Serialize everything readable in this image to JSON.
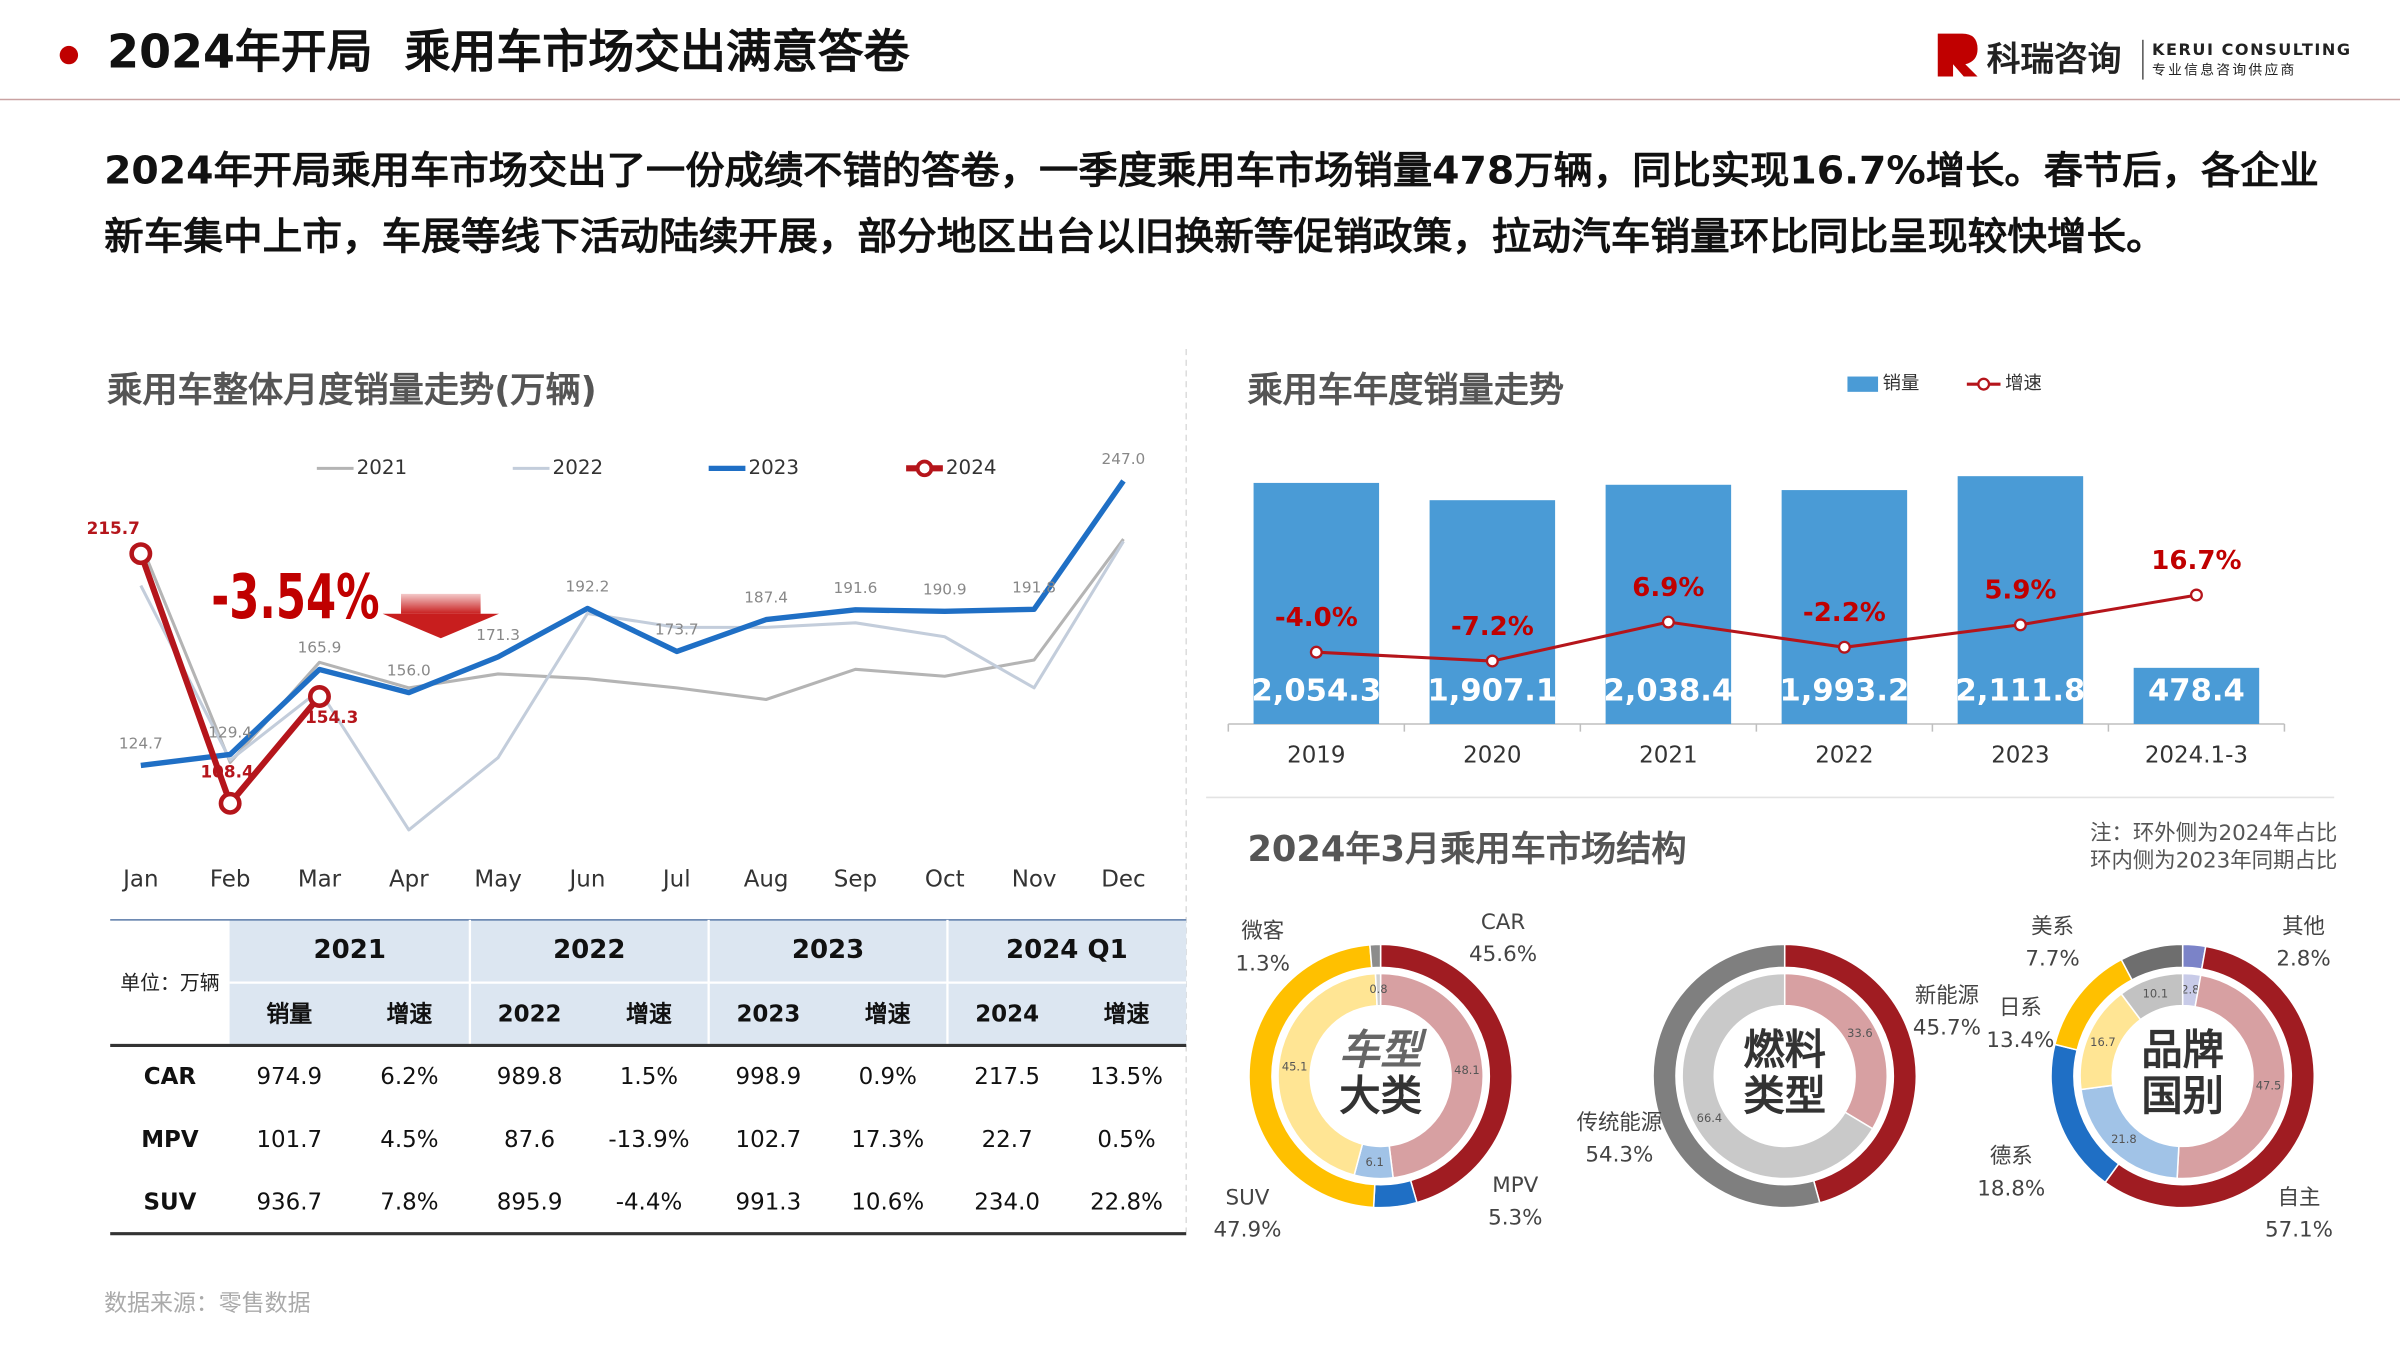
{
  "header": {
    "title": "2024年开局  乘用车市场交出满意答卷",
    "logo": {
      "name": "科瑞咨询",
      "english": "KERUI CONSULTING",
      "slogan": "专业信息咨询供应商"
    }
  },
  "intro": [
    "2024年开局乘用车市场交出了一份成绩不错的答卷，一季度乘用车市场销量478万辆，同比实现16.7%增长。春节后，各企业",
    "新车集中上市，车展等线下活动陆续开展，部分地区出台以旧换新等促销政策，拉动汽车销量环比同比呈现较快增长。"
  ],
  "chart_data": [
    {
      "type": "line",
      "title": "乘用车整体月度销量走势(万辆)",
      "annotation": "-3.54%",
      "categories": [
        "Jan",
        "Feb",
        "Mar",
        "Apr",
        "May",
        "Jun",
        "Jul",
        "Aug",
        "Sep",
        "Oct",
        "Nov",
        "Dec"
      ],
      "ylim": [
        90,
        260
      ],
      "series": [
        {
          "name": "2021",
          "color": "#b4b4b4",
          "values": [
            220,
            126,
            169,
            158,
            164,
            162,
            158,
            153,
            166,
            163,
            170,
            222
          ]
        },
        {
          "name": "2022",
          "color": "#c3cddb",
          "values": [
            202,
            127,
            157,
            97,
            128,
            190,
            184,
            184,
            186,
            180,
            158,
            221
          ]
        },
        {
          "name": "2023",
          "color": "#1f6fc5",
          "values": [
            124.7,
            129.4,
            165.9,
            156.0,
            171.3,
            192.2,
            173.7,
            187.4,
            191.6,
            190.9,
            191.8,
            247.0
          ],
          "value_labels": [
            "124.7",
            "129.4",
            "165.9",
            "156.0",
            "171.3",
            "192.2",
            "173.7",
            "187.4",
            "191.6",
            "190.9",
            "191.8",
            "247.0"
          ]
        },
        {
          "name": "2024",
          "color": "#b5151b",
          "values": [
            215.7,
            108.4,
            154.3,
            null,
            null,
            null,
            null,
            null,
            null,
            null,
            null,
            null
          ]
        }
      ]
    },
    {
      "type": "bar",
      "title": "乘用车年度销量走势",
      "categories": [
        "2019",
        "2020",
        "2021",
        "2022",
        "2023",
        "2024.1-3"
      ],
      "ylim": [
        0,
        2400
      ],
      "y2lim": [
        -30,
        72
      ],
      "series": [
        {
          "name": "销量",
          "color": "#4a9bd6",
          "values": [
            2054.3,
            1907.1,
            2038.4,
            1993.2,
            2111.8,
            478.4
          ],
          "value_labels": [
            "2,054.3",
            "1,907.1",
            "2,038.4",
            "1,993.2",
            "2,111.8",
            "478.4"
          ]
        },
        {
          "name": "增速",
          "type": "line",
          "axis": "y2",
          "color": "#b5151b",
          "values": [
            -4.0,
            -7.2,
            6.9,
            -2.2,
            5.9,
            16.7
          ],
          "value_labels": [
            "-4.0%",
            "-7.2%",
            "6.9%",
            "-2.2%",
            "5.9%",
            "16.7%"
          ]
        }
      ]
    },
    {
      "type": "donut",
      "center_label": [
        "车型",
        "大类"
      ],
      "categories": [
        "CAR",
        "MPV",
        "SUV",
        "微客"
      ],
      "colors": [
        "#a01c22",
        "#1f6fc5",
        "#ffc000",
        "#8c8c8c"
      ],
      "values": [
        45.6,
        5.3,
        47.9,
        1.3
      ],
      "value_labels": [
        "45.6%",
        "5.3%",
        "47.9%",
        "1.3%"
      ],
      "inner_values": [
        48.1,
        6.1,
        45.1,
        0.8
      ]
    },
    {
      "type": "donut",
      "center_label": [
        "燃料",
        "类型"
      ],
      "categories": [
        "新能源",
        "传统能源"
      ],
      "colors": [
        "#a01c22",
        "#7f7f7f"
      ],
      "values": [
        45.7,
        54.3
      ],
      "value_labels": [
        "45.7%",
        "54.3%"
      ],
      "inner_values": [
        33.6,
        66.4
      ]
    },
    {
      "type": "donut",
      "center_label": [
        "品牌",
        "国别"
      ],
      "categories": [
        "其他",
        "自主",
        "德系",
        "日系",
        "美系"
      ],
      "colors": [
        "#7b83c8",
        "#a01c22",
        "#1f6fc5",
        "#ffc000",
        "#6e6e6e"
      ],
      "values": [
        2.8,
        57.1,
        18.8,
        13.4,
        7.7
      ],
      "value_labels": [
        "2.8%",
        "57.1%",
        "18.8%",
        "13.4%",
        "7.7%"
      ],
      "inner_values": [
        2.8,
        47.5,
        21.8,
        16.7,
        10.1
      ]
    }
  ],
  "structure": {
    "title": "2024年3月乘用车市场结构",
    "note": [
      "注：环外侧为2024年占比",
      "环内侧为2023年同期占比"
    ]
  },
  "table": {
    "unit": "单位：万辆",
    "groups": [
      "2021",
      "2022",
      "2023",
      "2024 Q1"
    ],
    "subheaders": [
      "销量",
      "增速",
      "2022",
      "增速",
      "2023",
      "增速",
      "2024",
      "增速"
    ],
    "rows": [
      [
        "CAR",
        "974.9",
        "6.2%",
        "989.8",
        "1.5%",
        "998.9",
        "0.9%",
        "217.5",
        "13.5%"
      ],
      [
        "MPV",
        "101.7",
        "4.5%",
        "87.6",
        "-13.9%",
        "102.7",
        "17.3%",
        "22.7",
        "0.5%"
      ],
      [
        "SUV",
        "936.7",
        "7.8%",
        "895.9",
        "-4.4%",
        "991.3",
        "10.6%",
        "234.0",
        "22.8%"
      ]
    ]
  },
  "source": "数据来源：零售数据"
}
